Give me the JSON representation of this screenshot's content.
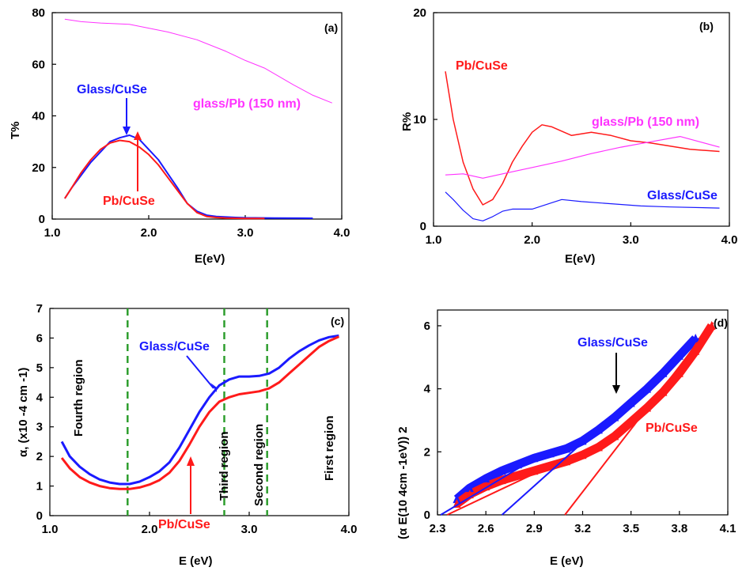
{
  "colors": {
    "blue": "#1a1aff",
    "red": "#ff1a1a",
    "magenta": "#ff33ff",
    "green": "#2e9e2e",
    "black": "#000000"
  },
  "chart_data": [
    {
      "panel": "(a)",
      "type": "line",
      "xlabel": "E(eV)",
      "ylabel": "T%",
      "xlim": [
        1.0,
        4.0
      ],
      "ylim": [
        0,
        80
      ],
      "xticks": [
        "1.0",
        "2.0",
        "3.0",
        "4.0"
      ],
      "yticks": [
        "0",
        "20",
        "40",
        "60",
        "80"
      ],
      "annotations": {
        "glass_cuse": "Glass/CuSe",
        "pb_cuse": "Pb/CuSe",
        "glass_pb": "glass/Pb (150 nm)"
      },
      "series": [
        {
          "name": "Glass/CuSe",
          "color": "#1a1aff",
          "x": [
            1.13,
            1.2,
            1.3,
            1.4,
            1.5,
            1.6,
            1.7,
            1.8,
            1.9,
            2.0,
            2.1,
            2.2,
            2.3,
            2.4,
            2.5,
            2.6,
            2.7,
            2.8,
            2.9,
            3.0,
            3.3,
            3.7
          ],
          "y": [
            8,
            12,
            17,
            22,
            26,
            30,
            31.5,
            32.5,
            31,
            27,
            23,
            17.5,
            12,
            6,
            3,
            1.5,
            1,
            0.8,
            0.6,
            0.5,
            0.4,
            0.3
          ]
        },
        {
          "name": "Pb/CuSe",
          "color": "#ff1a1a",
          "x": [
            1.13,
            1.2,
            1.3,
            1.4,
            1.5,
            1.6,
            1.7,
            1.8,
            1.9,
            2.0,
            2.1,
            2.2,
            2.3,
            2.4,
            2.5,
            2.6,
            2.7,
            2.8,
            2.9,
            3.0,
            3.2
          ],
          "y": [
            8,
            12,
            18,
            23,
            27,
            29.5,
            30.5,
            30,
            28,
            25,
            21,
            16,
            11,
            6,
            2.5,
            1,
            0.6,
            0.4,
            0.3,
            0.2,
            0.2
          ]
        },
        {
          "name": "glass/Pb (150 nm)",
          "color": "#ff33ff",
          "x": [
            1.13,
            1.3,
            1.5,
            1.8,
            2.0,
            2.2,
            2.5,
            2.8,
            3.0,
            3.2,
            3.5,
            3.7,
            3.9
          ],
          "y": [
            77.5,
            76.5,
            76,
            75.5,
            74,
            72.5,
            69.5,
            65,
            61.5,
            58.5,
            52,
            48,
            45
          ]
        }
      ]
    },
    {
      "panel": "(b)",
      "type": "line",
      "xlabel": "E(eV)",
      "ylabel": "R%",
      "xlim": [
        1.0,
        4.0
      ],
      "ylim": [
        0,
        20
      ],
      "xticks": [
        "1.0",
        "2.0",
        "3.0",
        "4.0"
      ],
      "yticks": [
        "0",
        "10",
        "20"
      ],
      "annotations": {
        "pb_cuse": "Pb/CuSe",
        "glass_pb": "glass/Pb (150 nm)",
        "glass_cuse": "Glass/CuSe"
      },
      "series": [
        {
          "name": "Pb/CuSe",
          "color": "#ff1a1a",
          "x": [
            1.12,
            1.2,
            1.3,
            1.4,
            1.5,
            1.6,
            1.7,
            1.8,
            1.9,
            2.0,
            2.1,
            2.2,
            2.4,
            2.6,
            2.8,
            3.0,
            3.2,
            3.4,
            3.6,
            3.9
          ],
          "y": [
            14.5,
            10,
            6,
            3.5,
            2,
            2.5,
            4,
            6,
            7.5,
            8.8,
            9.5,
            9.3,
            8.5,
            8.8,
            8.5,
            8,
            7.8,
            7.5,
            7.2,
            7
          ]
        },
        {
          "name": "glass/Pb (150 nm)",
          "color": "#ff33ff",
          "x": [
            1.12,
            1.3,
            1.5,
            1.7,
            2.0,
            2.3,
            2.6,
            2.9,
            3.2,
            3.5,
            3.7,
            3.9
          ],
          "y": [
            4.8,
            4.9,
            4.5,
            4.9,
            5.5,
            6.1,
            6.8,
            7.4,
            7.9,
            8.4,
            7.9,
            7.4
          ]
        },
        {
          "name": "Glass/CuSe",
          "color": "#1a1aff",
          "x": [
            1.12,
            1.2,
            1.3,
            1.4,
            1.5,
            1.6,
            1.7,
            1.8,
            2.0,
            2.2,
            2.3,
            2.5,
            2.8,
            3.1,
            3.4,
            3.9
          ],
          "y": [
            3.2,
            2.5,
            1.5,
            0.7,
            0.5,
            0.9,
            1.4,
            1.6,
            1.6,
            2.2,
            2.5,
            2.3,
            2.1,
            1.9,
            1.8,
            1.7
          ]
        }
      ]
    },
    {
      "panel": "(c)",
      "type": "line",
      "xlabel": "E (eV)",
      "ylabel": "α, (x10 -4 cm -1)",
      "xlim": [
        1.0,
        4.0
      ],
      "ylim": [
        0,
        7
      ],
      "xticks": [
        "1.0",
        "2.0",
        "3.0",
        "4.0"
      ],
      "yticks": [
        "0",
        "1",
        "2",
        "3",
        "4",
        "5",
        "6",
        "7"
      ],
      "annotations": {
        "glass_cuse": "Glass/CuSe",
        "pb_cuse": "Pb/CuSe"
      },
      "regions": [
        "Fourth region",
        "Third region",
        "Second region",
        "First region"
      ],
      "region_boundaries": [
        1.78,
        2.75,
        3.18
      ],
      "series": [
        {
          "name": "Glass/CuSe",
          "color": "#1a1aff",
          "x": [
            1.12,
            1.2,
            1.3,
            1.4,
            1.5,
            1.6,
            1.7,
            1.8,
            1.9,
            2.0,
            2.1,
            2.2,
            2.3,
            2.4,
            2.5,
            2.6,
            2.7,
            2.8,
            2.9,
            3.0,
            3.1,
            3.2,
            3.3,
            3.4,
            3.5,
            3.6,
            3.7,
            3.8,
            3.9
          ],
          "y": [
            2.5,
            2.0,
            1.65,
            1.4,
            1.22,
            1.12,
            1.07,
            1.07,
            1.15,
            1.3,
            1.5,
            1.8,
            2.3,
            2.9,
            3.5,
            4.0,
            4.4,
            4.6,
            4.7,
            4.7,
            4.72,
            4.8,
            5.0,
            5.3,
            5.55,
            5.75,
            5.92,
            6.03,
            6.08
          ]
        },
        {
          "name": "Pb/CuSe",
          "color": "#ff1a1a",
          "x": [
            1.12,
            1.2,
            1.3,
            1.4,
            1.5,
            1.6,
            1.7,
            1.8,
            1.9,
            2.0,
            2.1,
            2.2,
            2.3,
            2.4,
            2.5,
            2.6,
            2.7,
            2.8,
            2.9,
            3.0,
            3.1,
            3.2,
            3.3,
            3.4,
            3.5,
            3.6,
            3.7,
            3.8,
            3.9
          ],
          "y": [
            1.95,
            1.6,
            1.3,
            1.12,
            1.0,
            0.93,
            0.9,
            0.9,
            0.95,
            1.05,
            1.2,
            1.45,
            1.85,
            2.4,
            3.0,
            3.5,
            3.85,
            4.0,
            4.1,
            4.15,
            4.2,
            4.3,
            4.5,
            4.8,
            5.1,
            5.4,
            5.7,
            5.9,
            6.05
          ]
        }
      ]
    },
    {
      "panel": "(d)",
      "type": "scatter",
      "xlabel": "E (eV)",
      "ylabel": "(α E(10 4cm -1eV)) 2",
      "xlim": [
        2.3,
        4.1
      ],
      "ylim": [
        0,
        6.5
      ],
      "xticks": [
        "2.3",
        "2.6",
        "2.9",
        "3.2",
        "3.5",
        "3.8",
        "4.1"
      ],
      "yticks": [
        "0",
        "2",
        "4",
        "6"
      ],
      "annotations": {
        "glass_cuse": "Glass/CuSe",
        "pb_cuse": "Pb/CuSe"
      },
      "series": [
        {
          "name": "Glass/CuSe",
          "color": "#1a1aff",
          "x": [
            2.42,
            2.5,
            2.6,
            2.7,
            2.8,
            2.9,
            3.0,
            3.1,
            3.2,
            3.3,
            3.4,
            3.5,
            3.6,
            3.7,
            3.8,
            3.9
          ],
          "y": [
            0.5,
            0.85,
            1.15,
            1.4,
            1.6,
            1.8,
            1.95,
            2.1,
            2.35,
            2.7,
            3.1,
            3.55,
            4.0,
            4.5,
            5.05,
            5.6
          ]
        },
        {
          "name": "Pb/CuSe",
          "color": "#ff1a1a",
          "x": [
            2.42,
            2.5,
            2.6,
            2.7,
            2.8,
            2.9,
            3.0,
            3.1,
            3.2,
            3.3,
            3.4,
            3.5,
            3.6,
            3.7,
            3.8,
            3.9,
            4.0
          ],
          "y": [
            0.35,
            0.65,
            0.9,
            1.1,
            1.25,
            1.4,
            1.55,
            1.7,
            1.9,
            2.15,
            2.5,
            2.95,
            3.4,
            3.9,
            4.5,
            5.2,
            6.0
          ]
        }
      ],
      "fit_lines": [
        {
          "color": "#1a1aff",
          "x": [
            2.32,
            2.94
          ],
          "y": [
            0.0,
            1.9
          ]
        },
        {
          "color": "#1a1aff",
          "x": [
            2.7,
            3.92
          ],
          "y": [
            0.0,
            5.6
          ]
        },
        {
          "color": "#ff1a1a",
          "x": [
            2.36,
            2.98
          ],
          "y": [
            0.0,
            1.5
          ]
        },
        {
          "color": "#ff1a1a",
          "x": [
            3.09,
            4.01
          ],
          "y": [
            0.0,
            6.1
          ]
        }
      ]
    }
  ]
}
